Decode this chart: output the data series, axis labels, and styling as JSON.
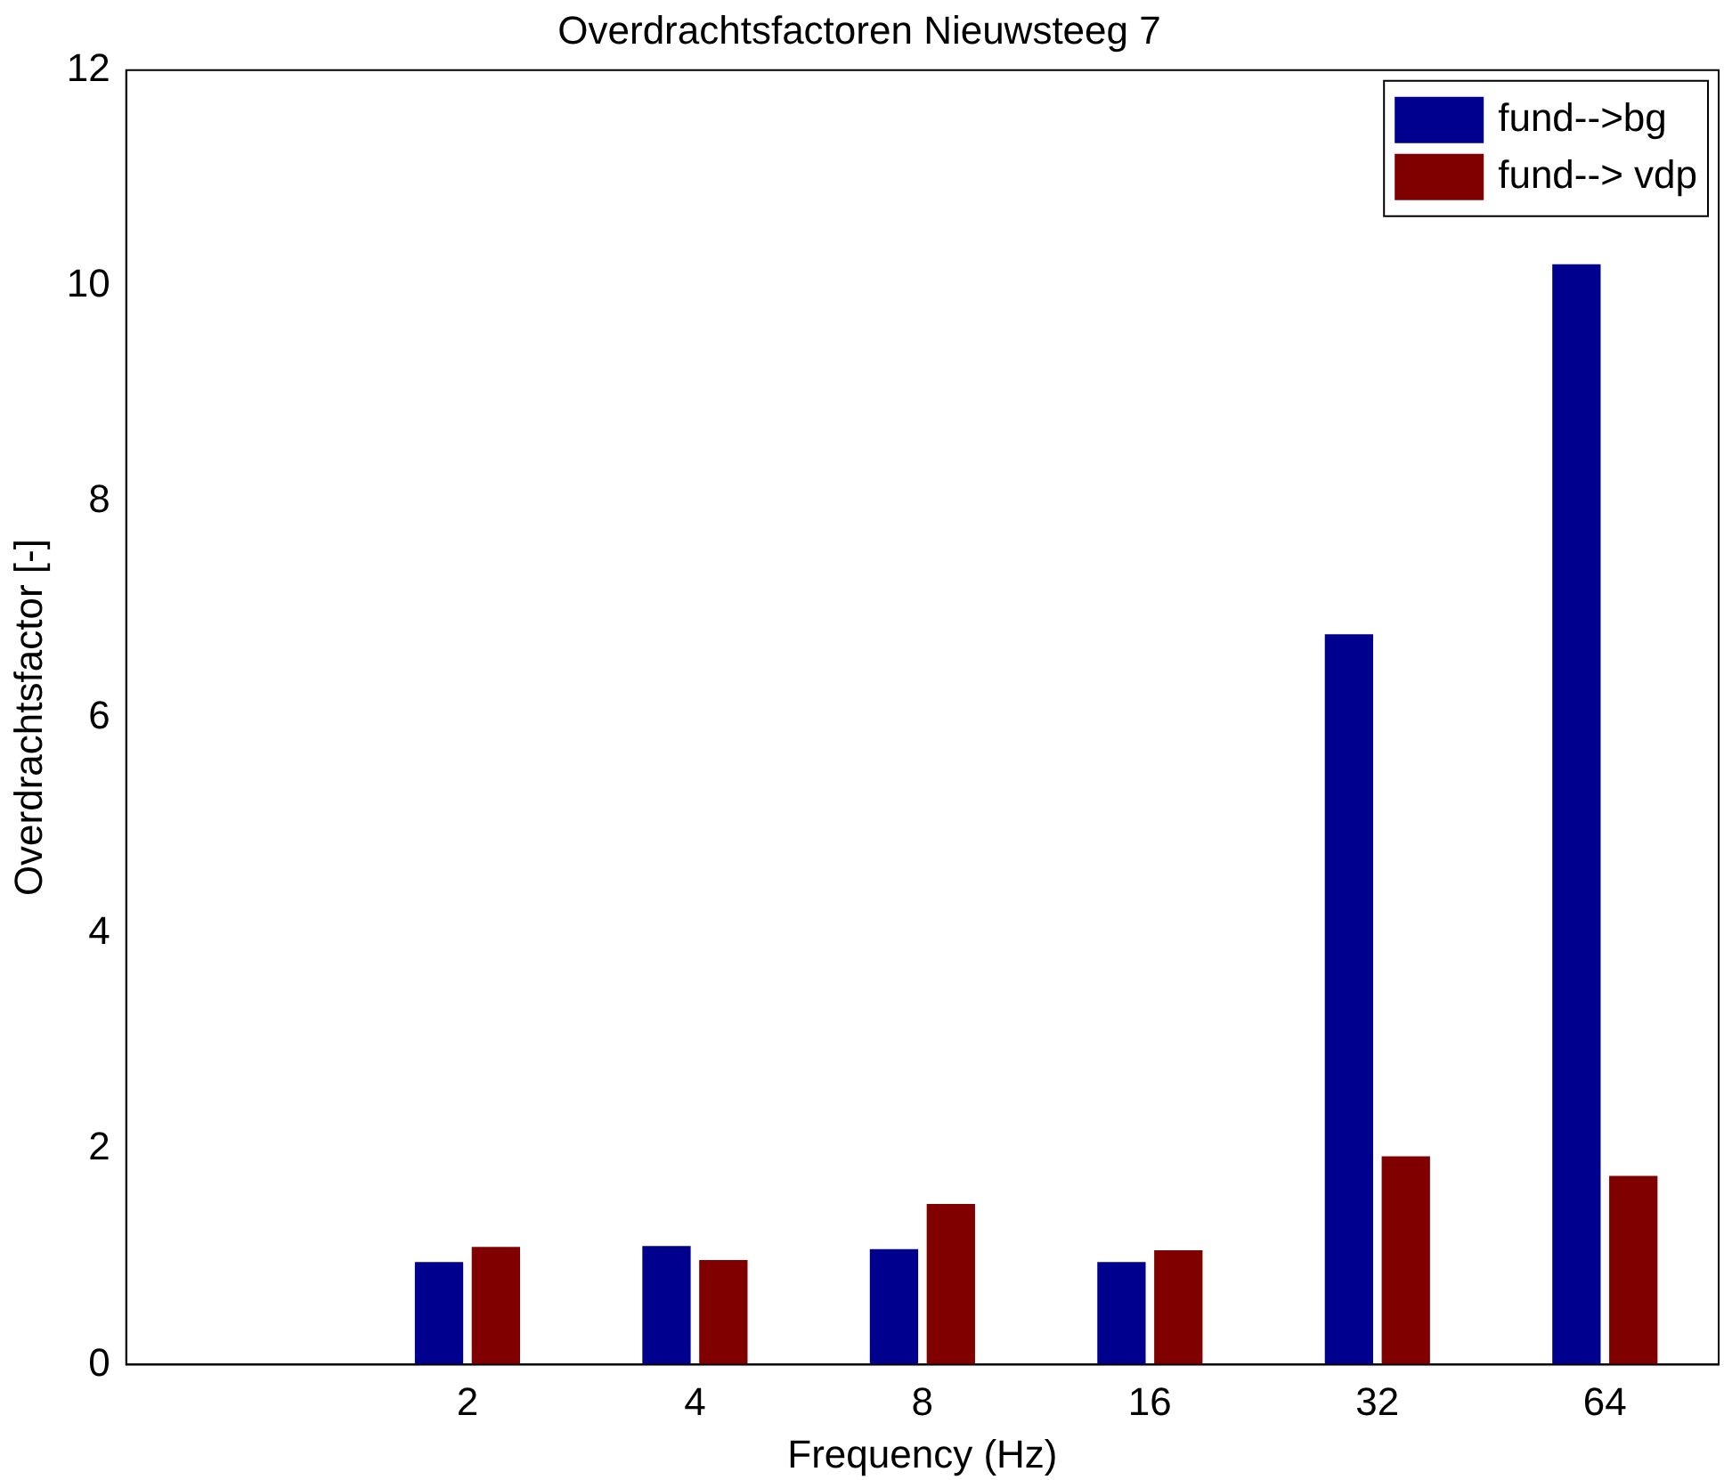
{
  "chart_data": {
    "type": "bar",
    "title": "Overdrachtsfactoren Nieuwsteeg 7",
    "xlabel": "Frequency (Hz)",
    "ylabel": "Overdrachtsfactor [-]",
    "categories": [
      null,
      "2",
      "4",
      "8",
      "16",
      "32",
      "64"
    ],
    "series": [
      {
        "name": "fund-->bg",
        "color": "#00008f",
        "values": [
          null,
          0.95,
          1.1,
          1.07,
          0.95,
          6.77,
          10.2
        ]
      },
      {
        "name": "fund--> vdp",
        "color": "#800000",
        "values": [
          null,
          1.09,
          0.97,
          1.49,
          1.06,
          1.93,
          1.75
        ]
      }
    ],
    "ylim": [
      0,
      12
    ],
    "yticks": [
      0,
      2,
      4,
      6,
      8,
      10,
      12
    ],
    "grid": false,
    "legend": "top right"
  }
}
